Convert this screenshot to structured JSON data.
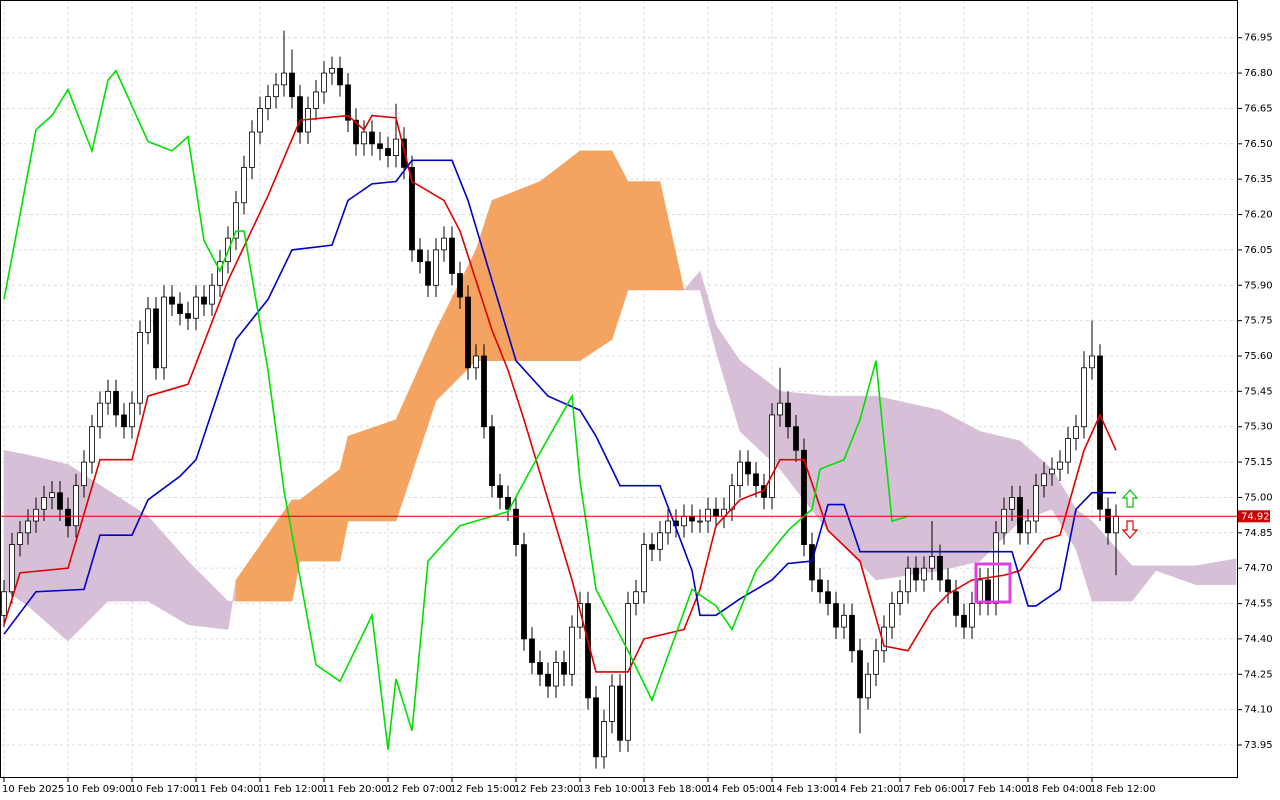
{
  "chart_data": {
    "type": "candlestick",
    "xlim": [
      -0.5,
      154.25
    ],
    "ylim": [
      73.81,
      77.11
    ],
    "grid": true,
    "xticks": [
      {
        "value": 0,
        "label": "10 Feb 2025"
      },
      {
        "value": 8,
        "label": "10 Feb 09:00"
      },
      {
        "value": 16,
        "label": "10 Feb 17:00"
      },
      {
        "value": 24,
        "label": "11 Feb 04:00"
      },
      {
        "value": 32,
        "label": "11 Feb 12:00"
      },
      {
        "value": 40,
        "label": "11 Feb 20:00"
      },
      {
        "value": 48,
        "label": "12 Feb 07:00"
      },
      {
        "value": 56,
        "label": "12 Feb 15:00"
      },
      {
        "value": 64,
        "label": "12 Feb 23:00"
      },
      {
        "value": 72,
        "label": "13 Feb 10:00"
      },
      {
        "value": 80,
        "label": "13 Feb 18:00"
      },
      {
        "value": 88,
        "label": "14 Feb 05:00"
      },
      {
        "value": 96,
        "label": "14 Feb 13:00"
      },
      {
        "value": 104,
        "label": "14 Feb 21:00"
      },
      {
        "value": 112,
        "label": "17 Feb 06:00"
      },
      {
        "value": 120,
        "label": "17 Feb 14:00"
      },
      {
        "value": 128,
        "label": "18 Feb 04:00"
      },
      {
        "value": 136,
        "label": "18 Feb 12:00"
      }
    ],
    "yticks": [
      76.95,
      {
        "value": 76.8,
        "label": "76.80"
      },
      76.65,
      {
        "value": 76.5,
        "label": "76.50"
      },
      76.35,
      {
        "value": 76.2,
        "label": "76.20"
      },
      76.05,
      {
        "value": 75.9,
        "label": "75.90"
      },
      75.75,
      {
        "value": 75.6,
        "label": "75.60"
      },
      75.45,
      {
        "value": 75.3,
        "label": "75.30"
      },
      75.15,
      {
        "value": 75,
        "label": "75.00"
      },
      74.85,
      {
        "value": 74.7,
        "label": "74.70"
      },
      74.55,
      {
        "value": 74.4,
        "label": "74.40"
      },
      74.25,
      {
        "value": 74.1,
        "label": "74.10"
      },
      73.95
    ],
    "current_price": 74.92,
    "current_price_color": "#d00000",
    "candles": {
      "up_color": "#ffffff",
      "down_color": "#000000",
      "wick_color": "#000000",
      "x": [
        0,
        1,
        2,
        3,
        4,
        5,
        6,
        7,
        8,
        9,
        10,
        11,
        12,
        13,
        14,
        15,
        16,
        17,
        18,
        19,
        20,
        21,
        22,
        23,
        24,
        25,
        26,
        27,
        28,
        29,
        30,
        31,
        32,
        33,
        34,
        35,
        36,
        37,
        38,
        39,
        40,
        41,
        42,
        43,
        44,
        45,
        46,
        47,
        48,
        49,
        50,
        51,
        52,
        53,
        54,
        55,
        56,
        57,
        58,
        59,
        60,
        61,
        62,
        63,
        64,
        65,
        66,
        67,
        68,
        69,
        70,
        71,
        72,
        73,
        74,
        75,
        76,
        77,
        78,
        79,
        80,
        81,
        82,
        83,
        84,
        85,
        86,
        87,
        88,
        89,
        90,
        91,
        92,
        93,
        94,
        95,
        96,
        97,
        98,
        99,
        100,
        101,
        102,
        103,
        104,
        105,
        106,
        107,
        108,
        109,
        110,
        111,
        112,
        113,
        114,
        115,
        116,
        117,
        118,
        119,
        120,
        121,
        122,
        123,
        124,
        125,
        126,
        127,
        128,
        129,
        130,
        131,
        132,
        133,
        134,
        135,
        136,
        137,
        138,
        139
      ],
      "open": [
        74.5,
        74.6,
        74.8,
        74.85,
        74.9,
        74.95,
        75.0,
        75.02,
        74.95,
        74.88,
        75.05,
        75.15,
        75.3,
        75.4,
        75.45,
        75.35,
        75.3,
        75.4,
        75.7,
        75.8,
        75.55,
        75.85,
        75.82,
        75.78,
        75.76,
        75.85,
        75.82,
        75.9,
        76.0,
        76.1,
        76.25,
        76.4,
        76.55,
        76.65,
        76.7,
        76.75,
        76.8,
        76.7,
        76.55,
        76.65,
        76.72,
        76.8,
        76.82,
        76.75,
        76.6,
        76.5,
        76.55,
        76.5,
        76.48,
        76.45,
        76.52,
        76.4,
        76.05,
        76.0,
        75.9,
        76.05,
        76.1,
        75.95,
        75.85,
        75.55,
        75.6,
        75.3,
        75.05,
        75.0,
        74.95,
        74.8,
        74.4,
        74.3,
        74.25,
        74.2,
        74.3,
        74.25,
        74.45,
        74.55,
        74.15,
        73.9,
        74.05,
        74.2,
        73.97,
        74.55,
        74.6,
        74.8,
        74.78,
        74.85,
        74.9,
        74.88,
        74.92,
        74.9,
        74.9,
        74.95,
        74.92,
        74.95,
        75.05,
        75.15,
        75.1,
        75.05,
        75.0,
        75.35,
        75.4,
        75.3,
        75.2,
        74.8,
        74.65,
        74.6,
        74.55,
        74.45,
        74.5,
        74.35,
        74.15,
        74.25,
        74.35,
        74.45,
        74.55,
        74.6,
        74.7,
        74.65,
        74.7,
        74.75,
        74.65,
        74.6,
        74.5,
        74.45,
        74.55,
        74.65,
        74.55,
        74.85,
        74.95,
        75.0,
        74.85,
        74.9,
        75.05,
        75.1,
        75.12,
        75.15,
        75.25,
        75.3,
        75.55,
        75.6,
        74.95,
        74.85
      ],
      "high": [
        74.65,
        74.85,
        74.9,
        74.95,
        75.0,
        75.05,
        75.07,
        75.07,
        75.0,
        75.1,
        75.2,
        75.35,
        75.45,
        75.5,
        75.5,
        75.4,
        75.45,
        75.75,
        75.85,
        75.85,
        75.9,
        75.9,
        75.87,
        75.83,
        75.9,
        75.9,
        75.95,
        76.05,
        76.15,
        76.3,
        76.45,
        76.6,
        76.7,
        76.75,
        76.8,
        76.98,
        76.9,
        76.75,
        76.7,
        76.77,
        76.85,
        76.87,
        76.87,
        76.8,
        76.65,
        76.6,
        76.6,
        76.55,
        76.53,
        76.67,
        76.57,
        76.45,
        76.1,
        76.05,
        76.1,
        76.15,
        76.15,
        76.0,
        75.9,
        75.65,
        75.65,
        75.35,
        75.1,
        75.05,
        75.0,
        74.85,
        74.45,
        74.35,
        74.3,
        74.35,
        74.35,
        74.5,
        74.6,
        74.6,
        74.2,
        74.1,
        74.25,
        74.25,
        74.6,
        74.65,
        74.85,
        74.85,
        74.9,
        74.95,
        74.95,
        74.97,
        74.97,
        74.95,
        75.0,
        75.0,
        75.0,
        75.1,
        75.2,
        75.2,
        75.15,
        75.1,
        75.4,
        75.55,
        75.45,
        75.35,
        75.25,
        74.85,
        74.7,
        74.65,
        74.6,
        74.55,
        74.55,
        74.4,
        74.3,
        74.4,
        74.5,
        74.6,
        74.65,
        74.75,
        74.75,
        74.75,
        74.9,
        74.8,
        74.7,
        74.65,
        74.55,
        74.6,
        74.7,
        74.7,
        74.9,
        75.0,
        75.05,
        75.05,
        74.95,
        75.1,
        75.15,
        75.17,
        75.2,
        75.3,
        75.35,
        75.62,
        75.75,
        75.65,
        75.0,
        74.97
      ],
      "low": [
        74.45,
        74.55,
        74.75,
        74.8,
        74.85,
        74.9,
        74.95,
        74.9,
        74.83,
        74.83,
        75.0,
        75.1,
        75.25,
        75.35,
        75.3,
        75.25,
        75.25,
        75.35,
        75.65,
        75.5,
        75.5,
        75.77,
        75.73,
        75.71,
        75.71,
        75.77,
        75.77,
        75.85,
        75.95,
        76.05,
        76.2,
        76.35,
        76.5,
        76.6,
        76.65,
        76.7,
        76.65,
        76.5,
        76.5,
        76.6,
        76.67,
        76.75,
        76.7,
        76.55,
        76.45,
        76.45,
        76.45,
        76.43,
        76.4,
        76.4,
        76.35,
        76.0,
        75.95,
        75.85,
        75.85,
        76.0,
        75.9,
        75.8,
        75.5,
        75.5,
        75.25,
        75.0,
        74.95,
        74.9,
        74.75,
        74.35,
        74.25,
        74.2,
        74.15,
        74.15,
        74.2,
        74.2,
        74.4,
        74.1,
        73.85,
        73.85,
        74.0,
        73.92,
        73.92,
        74.5,
        74.55,
        74.73,
        74.73,
        74.8,
        74.83,
        74.83,
        74.85,
        74.85,
        74.85,
        74.87,
        74.87,
        74.9,
        75.0,
        75.05,
        75.0,
        74.95,
        74.95,
        75.3,
        75.25,
        75.15,
        74.75,
        74.6,
        74.55,
        74.5,
        74.4,
        74.4,
        74.3,
        74.0,
        74.1,
        74.2,
        74.3,
        74.4,
        74.5,
        74.55,
        74.6,
        74.6,
        74.65,
        74.6,
        74.55,
        74.45,
        74.4,
        74.4,
        74.5,
        74.5,
        74.5,
        74.8,
        74.9,
        74.8,
        74.8,
        74.85,
        75.0,
        75.05,
        75.07,
        75.1,
        75.2,
        75.25,
        75.5,
        74.9,
        74.8,
        74.67
      ],
      "close": [
        74.6,
        74.8,
        74.85,
        74.9,
        74.95,
        75.0,
        75.02,
        74.95,
        74.88,
        75.05,
        75.15,
        75.3,
        75.4,
        75.45,
        75.35,
        75.3,
        75.4,
        75.7,
        75.8,
        75.55,
        75.85,
        75.82,
        75.78,
        75.76,
        75.85,
        75.82,
        75.9,
        76.0,
        76.1,
        76.25,
        76.4,
        76.55,
        76.65,
        76.7,
        76.75,
        76.8,
        76.7,
        76.55,
        76.65,
        76.72,
        76.8,
        76.82,
        76.75,
        76.6,
        76.5,
        76.55,
        76.5,
        76.48,
        76.45,
        76.52,
        76.4,
        76.05,
        76.0,
        75.9,
        76.05,
        76.1,
        75.95,
        75.85,
        75.55,
        75.6,
        75.3,
        75.05,
        75.0,
        74.95,
        74.8,
        74.4,
        74.3,
        74.25,
        74.2,
        74.3,
        74.25,
        74.45,
        74.55,
        74.15,
        73.9,
        74.05,
        74.2,
        73.97,
        74.55,
        74.6,
        74.8,
        74.78,
        74.85,
        74.9,
        74.88,
        74.92,
        74.9,
        74.9,
        74.95,
        74.92,
        74.95,
        75.05,
        75.15,
        75.1,
        75.05,
        75.0,
        75.35,
        75.4,
        75.3,
        75.2,
        74.8,
        74.65,
        74.6,
        74.55,
        74.45,
        74.5,
        74.35,
        74.15,
        74.25,
        74.35,
        74.45,
        74.55,
        74.6,
        74.7,
        74.65,
        74.7,
        74.75,
        74.65,
        74.6,
        74.5,
        74.45,
        74.55,
        74.65,
        74.55,
        74.85,
        74.95,
        75.0,
        74.85,
        74.9,
        75.05,
        75.1,
        75.12,
        75.15,
        75.25,
        75.3,
        75.55,
        75.6,
        74.95,
        74.85,
        74.92
      ]
    },
    "cloud": {
      "bull_color": "#f4a460",
      "bear_color": "#d8bfd8",
      "x": [
        0,
        3,
        8,
        13,
        18,
        23,
        28,
        29,
        36,
        37,
        42,
        43,
        49,
        54,
        59,
        61,
        67,
        72,
        76,
        78,
        82,
        85,
        87,
        89,
        92,
        97,
        103,
        109,
        117,
        122,
        127,
        131,
        134,
        136,
        141,
        144,
        149,
        154
      ],
      "span_a": [
        74.61,
        74.54,
        74.39,
        74.56,
        74.56,
        74.46,
        74.44,
        74.65,
        74.99,
        74.99,
        75.12,
        75.26,
        75.33,
        75.71,
        76.05,
        76.26,
        76.34,
        76.47,
        76.47,
        76.34,
        76.34,
        75.88,
        75.88,
        75.62,
        75.28,
        75.12,
        74.86,
        74.65,
        74.69,
        74.73,
        74.9,
        74.95,
        74.78,
        74.56,
        74.56,
        74.69,
        74.63,
        74.63
      ],
      "span_b": [
        75.2,
        75.18,
        75.14,
        75.03,
        74.92,
        74.73,
        74.56,
        74.56,
        74.56,
        74.73,
        74.73,
        74.9,
        74.9,
        75.41,
        75.58,
        75.58,
        75.58,
        75.58,
        75.67,
        75.88,
        75.88,
        75.88,
        75.96,
        75.73,
        75.58,
        75.45,
        75.43,
        75.43,
        75.37,
        75.28,
        75.24,
        75.12,
        74.95,
        74.9,
        74.71,
        74.71,
        74.71,
        74.74
      ]
    },
    "series": [
      {
        "color": "#e00000",
        "x": [
          0,
          2,
          8,
          12,
          16,
          18,
          23,
          28,
          33,
          37,
          43,
          45,
          46,
          49,
          51,
          55,
          57,
          61,
          63,
          65,
          68,
          71,
          74,
          78,
          80,
          85,
          87,
          89,
          92,
          95,
          97,
          100,
          103,
          107,
          110,
          113,
          116,
          118,
          121,
          125,
          127,
          130,
          132,
          135,
          137,
          139
        ],
        "values": [
          74.46,
          74.68,
          74.7,
          75.16,
          75.16,
          75.43,
          75.48,
          75.92,
          76.28,
          76.6,
          76.62,
          76.56,
          76.62,
          76.61,
          76.34,
          76.26,
          76.13,
          75.71,
          75.54,
          75.33,
          74.99,
          74.65,
          74.26,
          74.26,
          74.4,
          74.44,
          74.61,
          74.88,
          74.99,
          75.03,
          75.16,
          75.16,
          74.86,
          74.73,
          74.37,
          74.35,
          74.52,
          74.59,
          74.65,
          74.67,
          74.69,
          74.82,
          74.84,
          75.2,
          75.35,
          75.2
        ]
      },
      {
        "color": "#0000c8",
        "x": [
          0,
          4,
          10,
          12,
          16,
          18,
          22,
          24,
          29,
          33,
          36,
          41,
          43,
          46,
          49,
          51,
          56,
          58,
          61,
          64,
          68,
          72,
          74,
          77,
          82,
          86,
          87,
          89,
          92,
          96,
          98,
          101,
          103,
          105,
          107,
          126,
          128,
          129,
          132,
          134,
          136,
          139
        ],
        "values": [
          74.42,
          74.6,
          74.61,
          74.84,
          74.84,
          74.99,
          75.09,
          75.16,
          75.67,
          75.84,
          76.05,
          76.07,
          76.26,
          76.33,
          76.34,
          76.43,
          76.43,
          76.26,
          75.92,
          75.58,
          75.43,
          75.37,
          75.26,
          75.05,
          75.05,
          74.69,
          74.5,
          74.5,
          74.57,
          74.65,
          74.72,
          74.73,
          74.97,
          74.97,
          74.77,
          74.77,
          74.54,
          74.54,
          74.61,
          74.95,
          75.02,
          75.02
        ]
      },
      {
        "color": "#00e000",
        "x": [
          0,
          4,
          6,
          8,
          11,
          13,
          14,
          18,
          21,
          23,
          25,
          27,
          29,
          30,
          33,
          35,
          39,
          42,
          46,
          48,
          49,
          51,
          53,
          57,
          63,
          67,
          71,
          72,
          74,
          78,
          81,
          86,
          89,
          91,
          94,
          98,
          101,
          102,
          105,
          107,
          109,
          111,
          113
        ],
        "values": [
          75.84,
          76.56,
          76.62,
          76.73,
          76.47,
          76.77,
          76.81,
          76.51,
          76.47,
          76.53,
          76.09,
          75.96,
          76.13,
          76.13,
          75.54,
          75.03,
          74.29,
          74.22,
          74.5,
          73.93,
          74.23,
          74.01,
          74.73,
          74.88,
          74.94,
          75.19,
          75.43,
          75.07,
          74.61,
          74.35,
          74.14,
          74.61,
          74.54,
          74.44,
          74.69,
          74.86,
          74.95,
          75.12,
          75.16,
          75.33,
          75.58,
          74.9,
          74.92
        ]
      }
    ]
  }
}
